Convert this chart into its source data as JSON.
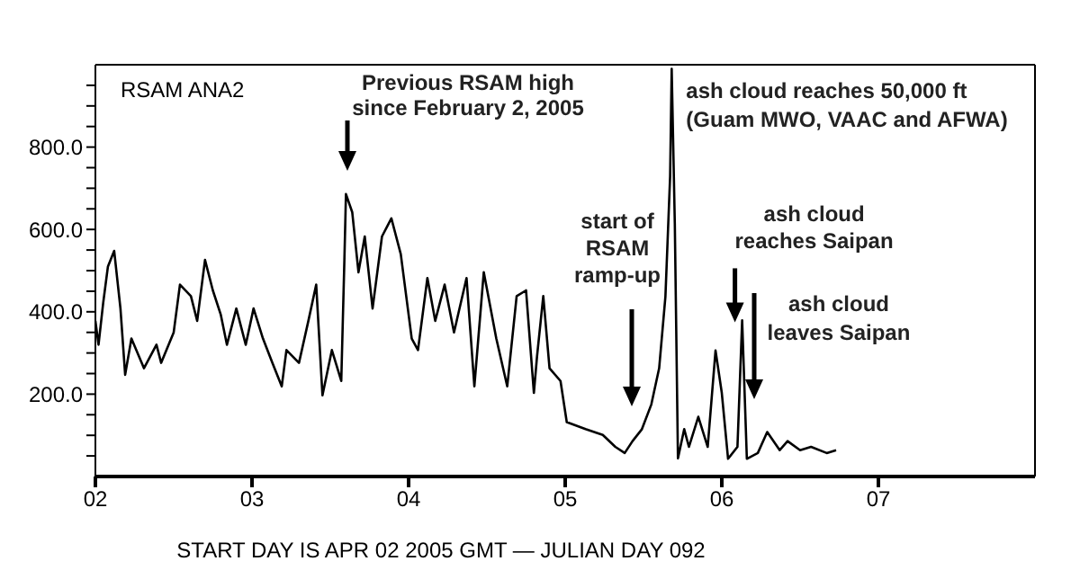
{
  "chart_data": {
    "type": "line",
    "title": "RSAM ANA2",
    "xlabel": "START DAY IS APR 02 2005 GMT   — JULIAN DAY 092",
    "color": "#000000",
    "x": [
      2.0,
      2.02,
      2.05,
      2.08,
      2.12,
      2.16,
      2.19,
      2.23,
      2.31,
      2.39,
      2.42,
      2.5,
      2.54,
      2.61,
      2.65,
      2.7,
      2.75,
      2.8,
      2.84,
      2.9,
      2.96,
      3.01,
      3.07,
      3.13,
      3.19,
      3.22,
      3.3,
      3.36,
      3.41,
      3.45,
      3.51,
      3.57,
      3.59,
      3.6,
      3.64,
      3.68,
      3.72,
      3.77,
      3.83,
      3.89,
      3.95,
      4.02,
      4.06,
      4.12,
      4.17,
      4.23,
      4.29,
      4.37,
      4.42,
      4.48,
      4.56,
      4.63,
      4.69,
      4.75,
      4.8,
      4.82,
      4.86,
      4.9,
      4.97,
      5.01,
      5.13,
      5.24,
      5.32,
      5.38,
      5.43,
      5.49,
      5.55,
      5.6,
      5.64,
      5.67,
      5.68,
      5.7,
      5.72,
      5.76,
      5.79,
      5.85,
      5.91,
      5.96,
      6.0,
      6.04,
      6.1,
      6.13,
      6.16,
      6.23,
      6.29,
      6.37,
      6.42,
      6.5,
      6.57,
      6.67,
      6.73
    ],
    "values": [
      378,
      320,
      422,
      510,
      548,
      408,
      247,
      335,
      263,
      320,
      276,
      350,
      466,
      438,
      378,
      526,
      452,
      394,
      320,
      408,
      320,
      408,
      335,
      276,
      219,
      307,
      276,
      378,
      466,
      197,
      307,
      232,
      526,
      686,
      642,
      496,
      583,
      408,
      583,
      627,
      540,
      335,
      307,
      482,
      378,
      466,
      350,
      482,
      219,
      496,
      335,
      219,
      438,
      452,
      203,
      291,
      438,
      263,
      232,
      132,
      115,
      101,
      72,
      57,
      86,
      115,
      175,
      263,
      437,
      729,
      990,
      614,
      44,
      115,
      72,
      145,
      72,
      306,
      203,
      43,
      72,
      379,
      43,
      57,
      108,
      64,
      86,
      64,
      72,
      57,
      64
    ],
    "xlim": [
      2,
      8
    ],
    "xticks": [
      {
        "value": 2,
        "label": "02"
      },
      {
        "value": 3,
        "label": "03"
      },
      {
        "value": 4,
        "label": "04"
      },
      {
        "value": 5,
        "label": "05"
      },
      {
        "value": 6,
        "label": "06"
      },
      {
        "value": 7,
        "label": "07"
      }
    ],
    "ylim": [
      0,
      1000
    ],
    "yticks": [
      {
        "value": 50,
        "label": null
      },
      {
        "value": 100,
        "label": null
      },
      {
        "value": 150,
        "label": null
      },
      {
        "value": 200,
        "label": "200.0"
      },
      {
        "value": 250,
        "label": null
      },
      {
        "value": 300,
        "label": null
      },
      {
        "value": 350,
        "label": null
      },
      {
        "value": 400,
        "label": "400.0"
      },
      {
        "value": 450,
        "label": null
      },
      {
        "value": 500,
        "label": null
      },
      {
        "value": 550,
        "label": null
      },
      {
        "value": 600,
        "label": "600.0"
      },
      {
        "value": 650,
        "label": null
      },
      {
        "value": 700,
        "label": null
      },
      {
        "value": 750,
        "label": null
      },
      {
        "value": 800,
        "label": "800.0"
      },
      {
        "value": 850,
        "label": null
      },
      {
        "value": 900,
        "label": null
      },
      {
        "value": 950,
        "label": null
      }
    ],
    "annotations": [
      "Previous RSAM high since February 2, 2005",
      "start of RSAM ramp-up",
      {
        "text": "ash cloud reaches 50,000 ft (Guam MWO, VAAC and AFWA)",
        "x": 5.68,
        "y": 990
      },
      {
        "text": "ash cloud reaches Saipan",
        "x": 6.13,
        "y": 379
      },
      "ash cloud leaves Saipan"
    ]
  }
}
